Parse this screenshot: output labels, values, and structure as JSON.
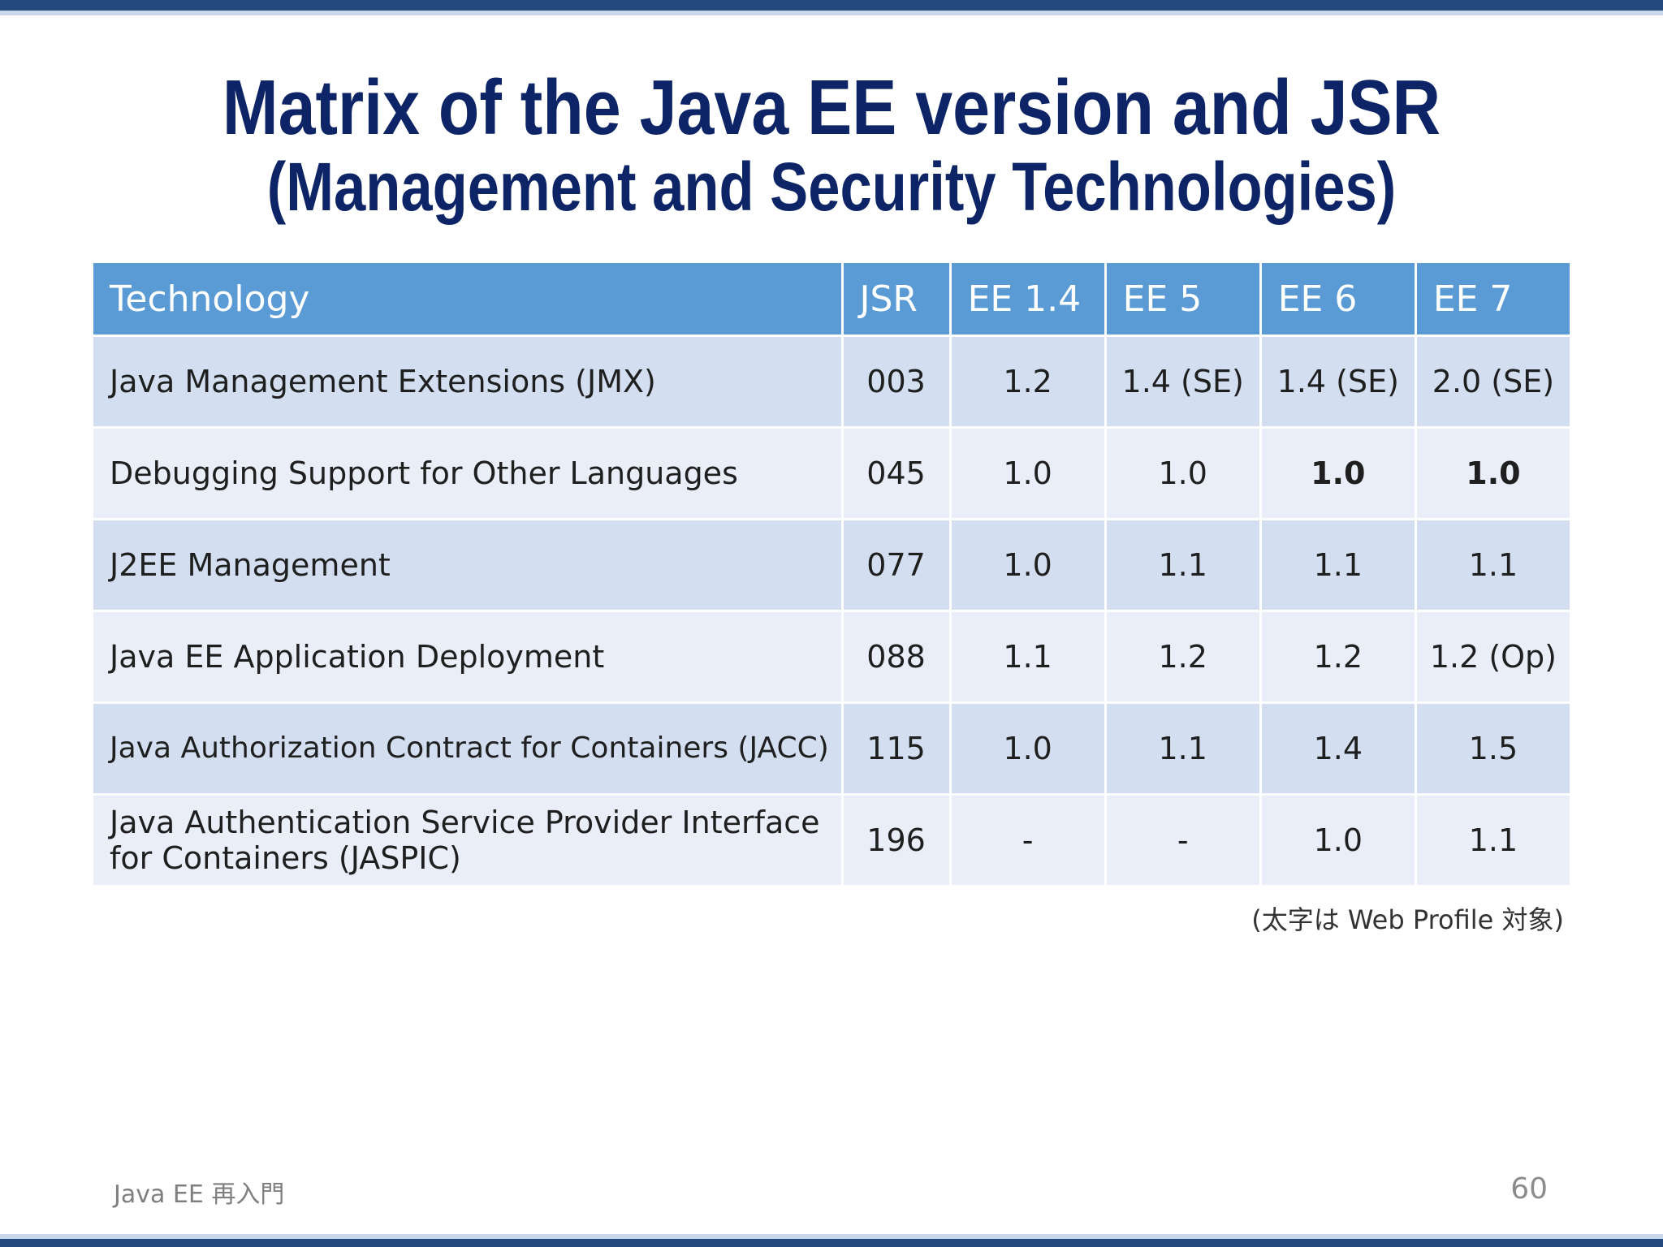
{
  "slide": {
    "title_line1": "Matrix of the Java EE version and JSR",
    "title_line2": "(Management and Security Technologies)"
  },
  "table": {
    "headers": [
      "Technology",
      "JSR",
      "EE 1.4",
      "EE 5",
      "EE 6",
      "EE 7"
    ],
    "rows": [
      [
        "Java Management Extensions (JMX)",
        "003",
        "1.2",
        "1.4 (SE)",
        "1.4 (SE)",
        "2.0 (SE)"
      ],
      [
        "Debugging Support for Other Languages",
        "045",
        "1.0",
        "1.0",
        "1.0",
        "1.0"
      ],
      [
        "J2EE Management",
        "077",
        "1.0",
        "1.1",
        "1.1",
        "1.1"
      ],
      [
        "Java EE Application Deployment",
        "088",
        "1.1",
        "1.2",
        "1.2",
        "1.2 (Op)"
      ],
      [
        "Java Authorization Contract for Containers (JACC)",
        "115",
        "1.0",
        "1.1",
        "1.4",
        "1.5"
      ],
      [
        "Java Authentication Service Provider Interface for Containers (JASPIC)",
        "196",
        "-",
        "-",
        "1.0",
        "1.1"
      ]
    ]
  },
  "footnote": "(太字は Web Profile 対象)",
  "footer": {
    "left": "Java EE 再入門",
    "page_number": "60"
  },
  "colors": {
    "title": "#0d2466",
    "header_bg": "#5b9bd5",
    "row_odd_bg": "#d3dff0",
    "row_even_bg": "#e9eef8",
    "bar": "#24497e"
  }
}
